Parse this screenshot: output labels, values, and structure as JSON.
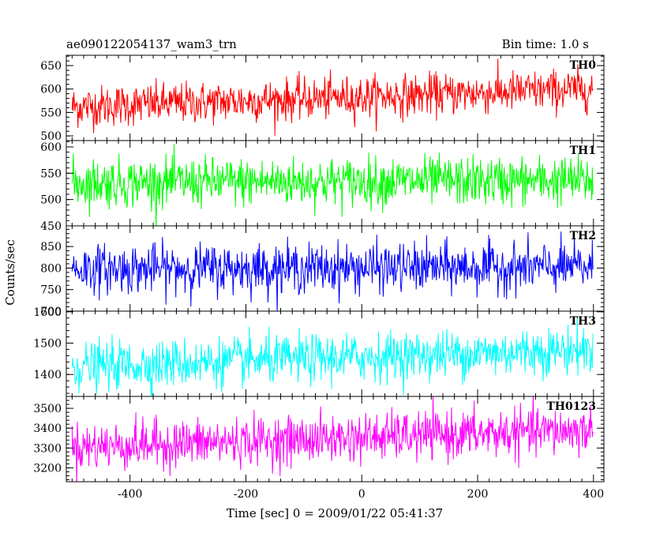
{
  "header": {
    "title": "ae090122054137_wam3_trn",
    "bin_time": "Bin time: 1.0 s"
  },
  "chart_data": {
    "type": "line",
    "title": "ae090122054137_wam3_trn",
    "subtitle": "Bin time: 1.0 s",
    "xlabel": "Time [sec] 0 = 2009/01/22 05:41:37",
    "ylabel": "Counts/sec",
    "xlim": [
      -510,
      418
    ],
    "xticks": [
      -400,
      -200,
      0,
      200,
      400
    ],
    "x_step": 1,
    "x_range": [
      -500,
      399
    ],
    "grid": false,
    "legend": "none",
    "panels": [
      {
        "name": "TH0",
        "color": "#ff0000",
        "ylim": [
          490,
          672
        ],
        "yticks": [
          500,
          550,
          600,
          650
        ],
        "mean_start": 562,
        "mean_end": 600,
        "noise_sd": 22
      },
      {
        "name": "TH1",
        "color": "#00ff00",
        "ylim": [
          450,
          612
        ],
        "yticks": [
          450,
          500,
          550,
          600
        ],
        "mean_start": 532,
        "mean_end": 536,
        "noise_sd": 23
      },
      {
        "name": "TH2",
        "color": "#0000ff",
        "ylim": [
          700,
          898
        ],
        "yticks": [
          700,
          750,
          800,
          850
        ],
        "mean_start": 798,
        "mean_end": 802,
        "noise_sd": 28
      },
      {
        "name": "TH3",
        "color": "#00ffff",
        "ylim": [
          1330,
          1602
        ],
        "yticks": [
          1400,
          1500,
          1600
        ],
        "mean_start": 1425,
        "mean_end": 1480,
        "noise_sd": 38
      },
      {
        "name": "TH0123",
        "color": "#ff00ff",
        "ylim": [
          3130,
          3560
        ],
        "yticks": [
          3200,
          3300,
          3400,
          3500
        ],
        "mean_start": 3305,
        "mean_end": 3390,
        "noise_sd": 60
      }
    ]
  }
}
